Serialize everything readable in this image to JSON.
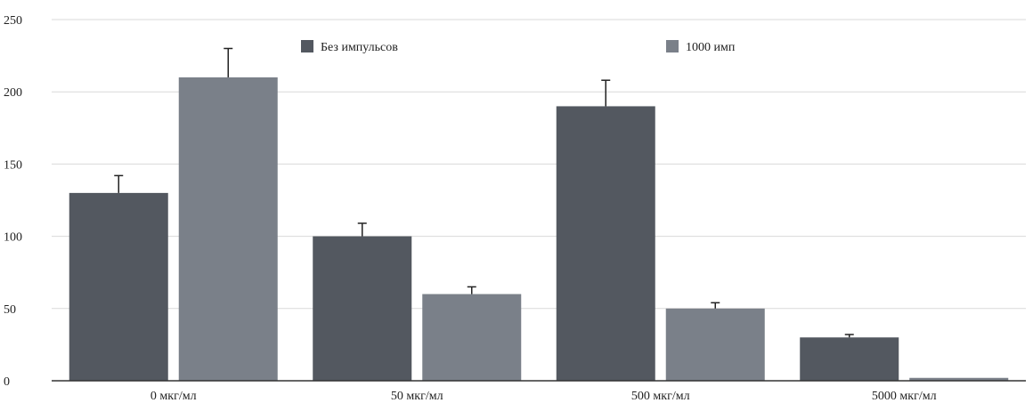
{
  "chart_data": {
    "type": "bar",
    "title": "",
    "xlabel": "",
    "ylabel": "",
    "categories": [
      "0 мкг/мл",
      "50 мкг/мл",
      "500 мкг/мл",
      "5000 мкг/мл"
    ],
    "series": [
      {
        "name": "Без импульсов",
        "color": "#535860",
        "values": [
          130,
          100,
          190,
          30
        ],
        "errors": [
          12,
          9,
          18,
          2
        ]
      },
      {
        "name": "1000 имп",
        "color": "#7a8089",
        "values": [
          210,
          60,
          50,
          2
        ],
        "errors": [
          20,
          5,
          4,
          0
        ]
      }
    ],
    "ylim": [
      0,
      250
    ],
    "yticks": [
      0,
      50,
      100,
      150,
      200,
      250
    ],
    "grid": true,
    "legend_position": "top"
  }
}
